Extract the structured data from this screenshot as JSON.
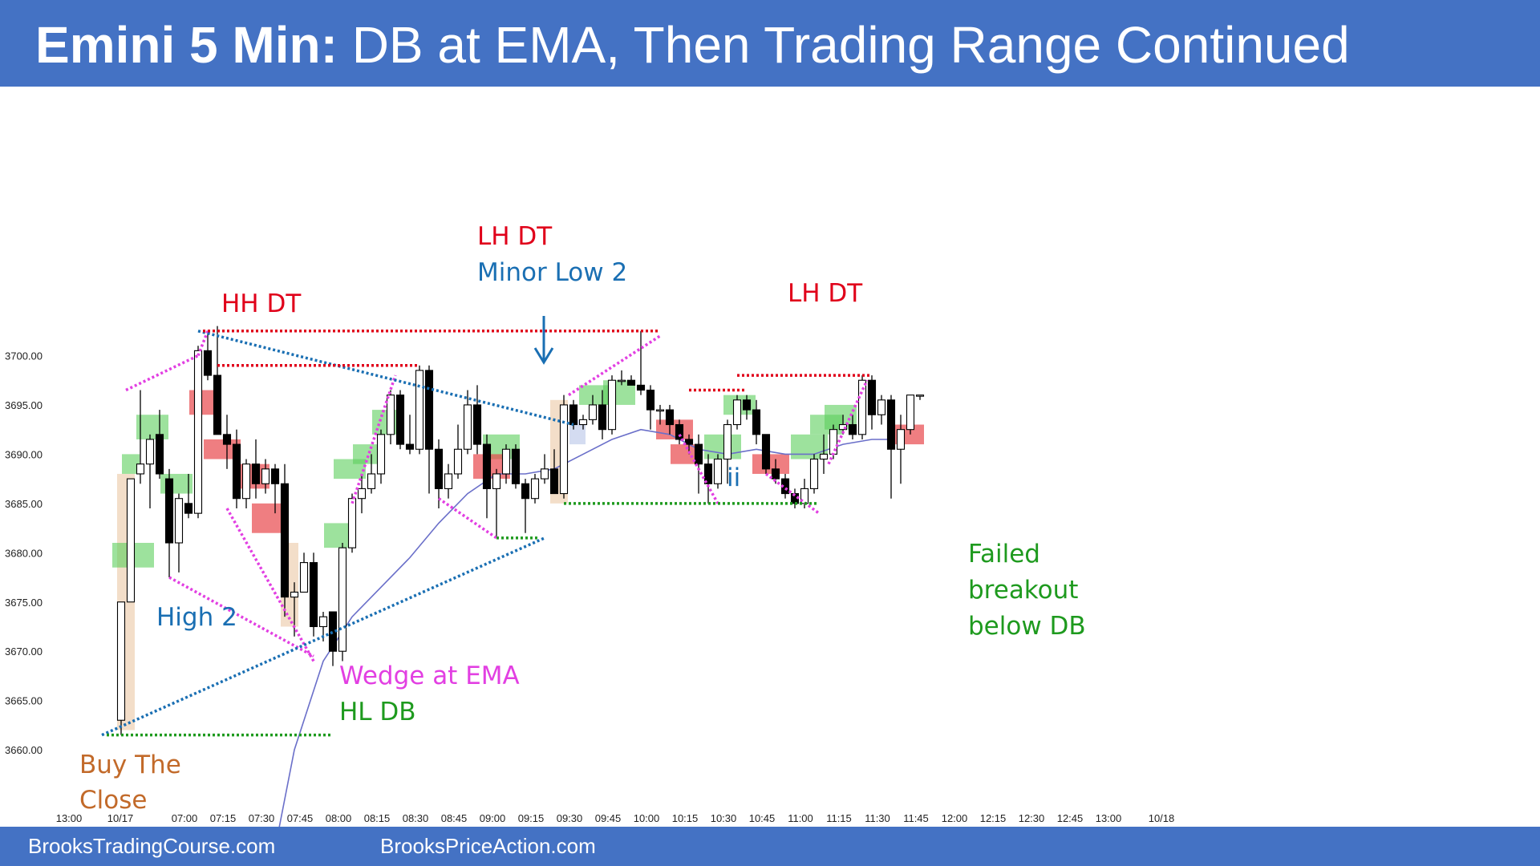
{
  "header": {
    "title_bold": "Emini 5 Min:",
    "title_rest": " DB at EMA, Then Trading Range Continued"
  },
  "footer": {
    "left": "BrooksTradingCourse.com",
    "right": "BrooksPriceAction.com"
  },
  "colors": {
    "band": "#4472c4",
    "bull_bar": "#ffffff",
    "bear_bar": "#000000",
    "ema": "#6a6fc9",
    "green_box": "#5ccf5c",
    "red_box": "#e8474c",
    "tan_box": "#e9c39c",
    "magenta": "#e23fe2",
    "blue_dot": "#1a6fb3",
    "red_dot": "#e0001a",
    "green_dot": "#1e9a1e"
  },
  "chart_data": {
    "type": "candlestick",
    "title": "",
    "ylim": [
      3659,
      3706
    ],
    "y_ticks": [
      "3700.00",
      "3695.00",
      "3690.00",
      "3685.00",
      "3680.00",
      "3675.00",
      "3670.00",
      "3665.00",
      "3660.00"
    ],
    "x_ticks": [
      "13:00",
      "10/17",
      "07:00",
      "07:15",
      "07:30",
      "07:45",
      "08:00",
      "08:15",
      "08:30",
      "08:45",
      "09:00",
      "09:15",
      "09:30",
      "09:45",
      "10:00",
      "10:15",
      "10:30",
      "10:45",
      "11:00",
      "11:15",
      "11:30",
      "11:45",
      "12:00",
      "12:15",
      "12:30",
      "12:45",
      "13:00",
      "10/18"
    ],
    "bars": [
      {
        "o": 3663,
        "h": 3675,
        "l": 3661.5,
        "c": 3675
      },
      {
        "o": 3675,
        "h": 3687.5,
        "l": 3675,
        "c": 3687.5
      },
      {
        "o": 3688,
        "h": 3696.5,
        "l": 3687,
        "c": 3689
      },
      {
        "o": 3689,
        "h": 3692,
        "l": 3684.5,
        "c": 3691.5
      },
      {
        "o": 3692,
        "h": 3694.5,
        "l": 3687.5,
        "c": 3688
      },
      {
        "o": 3687.5,
        "h": 3688.5,
        "l": 3677.5,
        "c": 3681
      },
      {
        "o": 3681,
        "h": 3686,
        "l": 3678,
        "c": 3685.5
      },
      {
        "o": 3685,
        "h": 3688,
        "l": 3683.5,
        "c": 3684
      },
      {
        "o": 3684,
        "h": 3701,
        "l": 3683.5,
        "c": 3700.5
      },
      {
        "o": 3700.5,
        "h": 3702.5,
        "l": 3697.5,
        "c": 3698
      },
      {
        "o": 3698,
        "h": 3703,
        "l": 3692,
        "c": 3692
      },
      {
        "o": 3692,
        "h": 3694,
        "l": 3688.5,
        "c": 3691
      },
      {
        "o": 3691,
        "h": 3692.5,
        "l": 3684.5,
        "c": 3685.5
      },
      {
        "o": 3685.5,
        "h": 3689.5,
        "l": 3684.5,
        "c": 3689
      },
      {
        "o": 3689,
        "h": 3691.5,
        "l": 3685.5,
        "c": 3687
      },
      {
        "o": 3687,
        "h": 3689.5,
        "l": 3686,
        "c": 3688.5
      },
      {
        "o": 3688.5,
        "h": 3689,
        "l": 3684,
        "c": 3687
      },
      {
        "o": 3687,
        "h": 3689,
        "l": 3673.5,
        "c": 3675.5
      },
      {
        "o": 3675.5,
        "h": 3677,
        "l": 3671.5,
        "c": 3676
      },
      {
        "o": 3676,
        "h": 3680,
        "l": 3676,
        "c": 3679
      },
      {
        "o": 3679,
        "h": 3680,
        "l": 3671.5,
        "c": 3672.5
      },
      {
        "o": 3672.5,
        "h": 3674,
        "l": 3671,
        "c": 3673.5
      },
      {
        "o": 3674,
        "h": 3674,
        "l": 3668.5,
        "c": 3670
      },
      {
        "o": 3670,
        "h": 3681,
        "l": 3669,
        "c": 3680.5
      },
      {
        "o": 3680.5,
        "h": 3686,
        "l": 3680,
        "c": 3685.5
      },
      {
        "o": 3685.5,
        "h": 3688,
        "l": 3684,
        "c": 3686.5
      },
      {
        "o": 3686.5,
        "h": 3690,
        "l": 3686,
        "c": 3688
      },
      {
        "o": 3688,
        "h": 3692.5,
        "l": 3687,
        "c": 3692
      },
      {
        "o": 3692,
        "h": 3696.5,
        "l": 3691,
        "c": 3696
      },
      {
        "o": 3696,
        "h": 3696.5,
        "l": 3690.5,
        "c": 3691
      },
      {
        "o": 3691,
        "h": 3694,
        "l": 3690,
        "c": 3690.5
      },
      {
        "o": 3690.5,
        "h": 3699,
        "l": 3690,
        "c": 3698.5
      },
      {
        "o": 3698.5,
        "h": 3699,
        "l": 3686,
        "c": 3690.5
      },
      {
        "o": 3690.5,
        "h": 3691.5,
        "l": 3684.5,
        "c": 3686.5
      },
      {
        "o": 3686.5,
        "h": 3689,
        "l": 3685.5,
        "c": 3688
      },
      {
        "o": 3688,
        "h": 3693,
        "l": 3687.5,
        "c": 3690.5
      },
      {
        "o": 3690.5,
        "h": 3696.5,
        "l": 3690,
        "c": 3695
      },
      {
        "o": 3695,
        "h": 3697,
        "l": 3690,
        "c": 3691
      },
      {
        "o": 3691,
        "h": 3692,
        "l": 3683.5,
        "c": 3686.5
      },
      {
        "o": 3686.5,
        "h": 3688.5,
        "l": 3681.5,
        "c": 3688
      },
      {
        "o": 3688,
        "h": 3691,
        "l": 3687,
        "c": 3690.5
      },
      {
        "o": 3690.5,
        "h": 3691,
        "l": 3686.5,
        "c": 3687
      },
      {
        "o": 3687,
        "h": 3687.5,
        "l": 3682,
        "c": 3685.5
      },
      {
        "o": 3685.5,
        "h": 3688,
        "l": 3685,
        "c": 3687.5
      },
      {
        "o": 3687.5,
        "h": 3690,
        "l": 3687,
        "c": 3688.5
      },
      {
        "o": 3688.5,
        "h": 3690.5,
        "l": 3686,
        "c": 3686
      },
      {
        "o": 3686,
        "h": 3696,
        "l": 3685.5,
        "c": 3695
      },
      {
        "o": 3695,
        "h": 3695.5,
        "l": 3692.5,
        "c": 3693
      },
      {
        "o": 3693,
        "h": 3694,
        "l": 3692.5,
        "c": 3693.5
      },
      {
        "o": 3693.5,
        "h": 3696,
        "l": 3693,
        "c": 3695
      },
      {
        "o": 3695,
        "h": 3696.5,
        "l": 3691.5,
        "c": 3692.5
      },
      {
        "o": 3692.5,
        "h": 3698,
        "l": 3692,
        "c": 3697.5
      },
      {
        "o": 3697.5,
        "h": 3698.5,
        "l": 3697,
        "c": 3697.5
      },
      {
        "o": 3697.5,
        "h": 3698,
        "l": 3697,
        "c": 3697
      },
      {
        "o": 3697,
        "h": 3702.5,
        "l": 3696,
        "c": 3696.5
      },
      {
        "o": 3696.5,
        "h": 3697,
        "l": 3692.5,
        "c": 3694.5
      },
      {
        "o": 3694.5,
        "h": 3695,
        "l": 3693,
        "c": 3694.5
      },
      {
        "o": 3694.5,
        "h": 3695,
        "l": 3692,
        "c": 3693
      },
      {
        "o": 3693,
        "h": 3693.5,
        "l": 3691,
        "c": 3691.5
      },
      {
        "o": 3691.5,
        "h": 3692,
        "l": 3690,
        "c": 3691
      },
      {
        "o": 3691,
        "h": 3692,
        "l": 3686,
        "c": 3689
      },
      {
        "o": 3689,
        "h": 3690,
        "l": 3685,
        "c": 3687
      },
      {
        "o": 3687,
        "h": 3690,
        "l": 3686.5,
        "c": 3689.5
      },
      {
        "o": 3689.5,
        "h": 3693.5,
        "l": 3687,
        "c": 3693
      },
      {
        "o": 3693,
        "h": 3696,
        "l": 3692.5,
        "c": 3695.5
      },
      {
        "o": 3695.5,
        "h": 3696,
        "l": 3693.5,
        "c": 3694.5
      },
      {
        "o": 3694.5,
        "h": 3695.5,
        "l": 3691,
        "c": 3692
      },
      {
        "o": 3692,
        "h": 3692,
        "l": 3688,
        "c": 3688.5
      },
      {
        "o": 3688.5,
        "h": 3689.5,
        "l": 3687,
        "c": 3687.5
      },
      {
        "o": 3687.5,
        "h": 3688,
        "l": 3685.5,
        "c": 3686
      },
      {
        "o": 3686,
        "h": 3686.5,
        "l": 3684.5,
        "c": 3685
      },
      {
        "o": 3685,
        "h": 3687.5,
        "l": 3684.5,
        "c": 3686.5
      },
      {
        "o": 3686.5,
        "h": 3690,
        "l": 3686,
        "c": 3689.5
      },
      {
        "o": 3689.5,
        "h": 3692,
        "l": 3688,
        "c": 3690
      },
      {
        "o": 3690,
        "h": 3693,
        "l": 3689.5,
        "c": 3692.5
      },
      {
        "o": 3692.5,
        "h": 3694,
        "l": 3692,
        "c": 3693
      },
      {
        "o": 3693,
        "h": 3694,
        "l": 3691.5,
        "c": 3692
      },
      {
        "o": 3692,
        "h": 3698,
        "l": 3691.5,
        "c": 3697.5
      },
      {
        "o": 3697.5,
        "h": 3698,
        "l": 3692.5,
        "c": 3694
      },
      {
        "o": 3694,
        "h": 3696,
        "l": 3693,
        "c": 3695.5
      },
      {
        "o": 3695.5,
        "h": 3696,
        "l": 3685.5,
        "c": 3690.5
      },
      {
        "o": 3690.5,
        "h": 3694,
        "l": 3687,
        "c": 3692.5
      },
      {
        "o": 3692.5,
        "h": 3696,
        "l": 3692,
        "c": 3696
      },
      {
        "o": 3696,
        "h": 3696,
        "l": 3695.5,
        "c": 3696
      }
    ],
    "ema": [
      {
        "i": 16,
        "v": 3650
      },
      {
        "i": 18,
        "v": 3660
      },
      {
        "i": 21,
        "v": 3669
      },
      {
        "i": 24,
        "v": 3673.5
      },
      {
        "i": 27,
        "v": 3676.5
      },
      {
        "i": 30,
        "v": 3679.5
      },
      {
        "i": 33,
        "v": 3683
      },
      {
        "i": 36,
        "v": 3686
      },
      {
        "i": 39,
        "v": 3688
      },
      {
        "i": 42,
        "v": 3688
      },
      {
        "i": 45,
        "v": 3688.5
      },
      {
        "i": 48,
        "v": 3690
      },
      {
        "i": 51,
        "v": 3691.5
      },
      {
        "i": 54,
        "v": 3692.5
      },
      {
        "i": 57,
        "v": 3692
      },
      {
        "i": 60,
        "v": 3690.5
      },
      {
        "i": 63,
        "v": 3690
      },
      {
        "i": 66,
        "v": 3690.5
      },
      {
        "i": 69,
        "v": 3690
      },
      {
        "i": 72,
        "v": 3690
      },
      {
        "i": 75,
        "v": 3691
      },
      {
        "i": 78,
        "v": 3691.5
      },
      {
        "i": 80,
        "v": 3691.5
      }
    ],
    "annotations": {
      "hh_dt": "HH DT",
      "lh_dt_1": "LH DT",
      "minor_low_2": "Minor Low 2",
      "lh_dt_2": "LH DT",
      "high_2": "High 2",
      "wedge_ema": "Wedge at EMA",
      "hl_db": "HL DB",
      "buy_the": "Buy The",
      "close": "Close",
      "ii": "ii",
      "failed": "Failed",
      "breakout": "breakout",
      "below_db": "below DB"
    }
  }
}
